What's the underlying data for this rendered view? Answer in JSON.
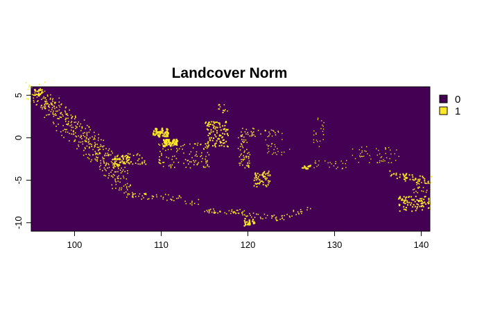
{
  "title": "Landcover Norm",
  "x_axis": {
    "ticks": [
      100,
      110,
      120,
      130,
      140
    ],
    "range": [
      95,
      141
    ]
  },
  "y_axis": {
    "ticks": [
      5,
      0,
      -5,
      -10
    ],
    "range": [
      -11,
      6
    ]
  },
  "legend": [
    {
      "label": "0",
      "color": "#440154"
    },
    {
      "label": "1",
      "color": "#FDE725"
    }
  ],
  "colors": {
    "background": "#440154",
    "foreground": "#FDE725"
  },
  "map_features": [
    {
      "name": "sumatra",
      "lon": [
        95.2,
        106.0
      ],
      "lat": [
        -6.0,
        5.8
      ]
    },
    {
      "name": "java",
      "lon": [
        105.5,
        114.5
      ],
      "lat": [
        -8.8,
        -6.0
      ]
    },
    {
      "name": "borneo",
      "lon": [
        108.8,
        119.0
      ],
      "lat": [
        -4.2,
        4.0
      ]
    },
    {
      "name": "sulawesi",
      "lon": [
        118.8,
        125.5
      ],
      "lat": [
        -6.0,
        2.0
      ]
    },
    {
      "name": "maluku",
      "lon": [
        124.5,
        131.5
      ],
      "lat": [
        -4.0,
        2.8
      ]
    },
    {
      "name": "nusa-tenggara",
      "lon": [
        114.5,
        127.0
      ],
      "lat": [
        -10.5,
        -8.0
      ]
    },
    {
      "name": "papua",
      "lon": [
        130.5,
        141.0
      ],
      "lat": [
        -9.0,
        -0.5
      ]
    }
  ]
}
